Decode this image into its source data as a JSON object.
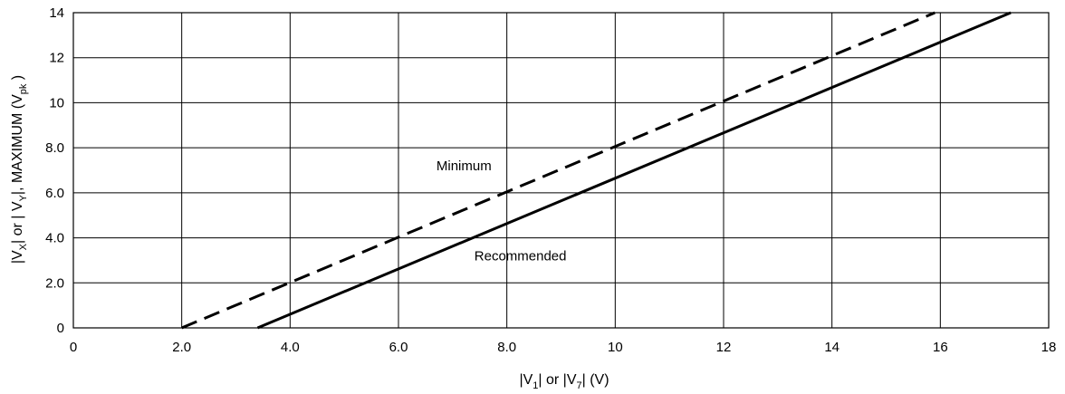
{
  "chart_data": {
    "type": "line",
    "title": "",
    "xlabel": {
      "main": "|V",
      "sub1": "1",
      "mid": "| or |V",
      "sub2": "7",
      "tail": "| (V)"
    },
    "ylabel": {
      "main": "|V",
      "sub1": "X",
      "mid": "| or | V",
      "sub2": "Y",
      "mid2": "|, MAXIMUM (V",
      "sub3": "pk",
      "tail": " )"
    },
    "xlim": [
      0,
      18
    ],
    "ylim": [
      0,
      14
    ],
    "x_ticks": [
      0,
      2,
      4,
      6,
      8,
      10,
      12,
      14,
      16,
      18
    ],
    "x_tick_labels": [
      "0",
      "2.0",
      "4.0",
      "6.0",
      "8.0",
      "10",
      "12",
      "14",
      "16",
      "18"
    ],
    "y_ticks": [
      0,
      2,
      4,
      6,
      8,
      10,
      12,
      14
    ],
    "y_tick_labels": [
      "0",
      "2.0",
      "4.0",
      "6.0",
      "8.0",
      "10",
      "12",
      "14"
    ],
    "grid": true,
    "series": [
      {
        "name": "Minimum",
        "style": "dashed",
        "x": [
          2.0,
          15.9
        ],
        "y": [
          0,
          14
        ]
      },
      {
        "name": "Recommended",
        "style": "solid",
        "x": [
          3.4,
          17.3
        ],
        "y": [
          0,
          14
        ]
      }
    ],
    "annotations": [
      {
        "text": "Minimum",
        "x": 6.7,
        "y": 7.0,
        "series": "Minimum"
      },
      {
        "text": "Recommended",
        "x": 7.4,
        "y": 3.0,
        "series": "Recommended"
      }
    ]
  }
}
